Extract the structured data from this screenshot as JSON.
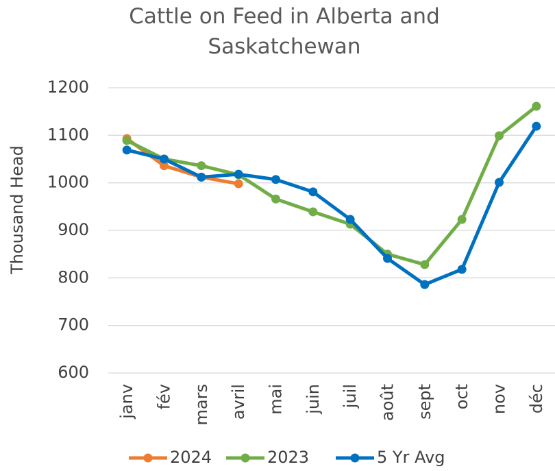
{
  "chart_data": {
    "type": "line",
    "title": "Cattle on Feed in Alberta and Saskatchewan",
    "y_label": "Thousand Head",
    "categories": [
      "janv",
      "fév",
      "mars",
      "avril",
      "mai",
      "juin",
      "juil",
      "août",
      "sept",
      "oct",
      "nov",
      "déc"
    ],
    "series": [
      {
        "name": "2024",
        "color": "#ed7d31",
        "values": [
          1093,
          1036,
          1012,
          998,
          null,
          null,
          null,
          null,
          null,
          null,
          null,
          null
        ]
      },
      {
        "name": "2023",
        "color": "#70ad47",
        "values": [
          1089,
          1050,
          1036,
          1017,
          966,
          939,
          913,
          850,
          828,
          923,
          1099,
          1161
        ]
      },
      {
        "name": "5 Yr Avg",
        "color": "#0070c0",
        "values": [
          1069,
          1050,
          1012,
          1018,
          1007,
          981,
          923,
          841,
          786,
          818,
          1001,
          1119
        ]
      }
    ],
    "ylim": [
      600,
      1200
    ],
    "yticks": [
      600,
      700,
      800,
      900,
      1000,
      1100,
      1200
    ],
    "grid": true,
    "legend": "bottom"
  }
}
